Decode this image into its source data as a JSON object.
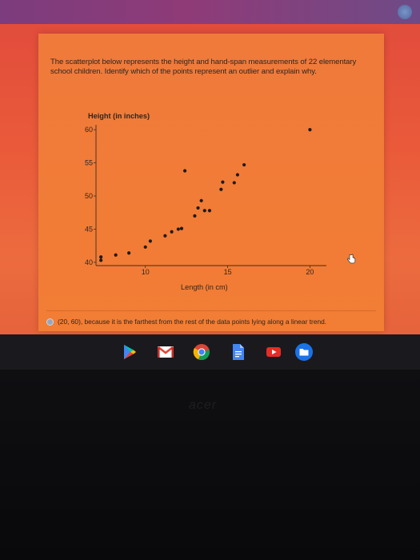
{
  "question": {
    "text": "The scatterplot below represents the height and hand-span measurements of 22 elementary school children. Identify which of the points represent an outlier and explain why."
  },
  "chart_data": {
    "type": "scatter",
    "ylabel": "Height (in inches)",
    "xlabel": "Length (in cm)",
    "xlim": [
      7,
      21
    ],
    "ylim": [
      39.5,
      60.5
    ],
    "x_ticks": [
      "10",
      "15",
      "20"
    ],
    "y_ticks": [
      "40",
      "45",
      "50",
      "55",
      "60"
    ],
    "x_tick_values": [
      10,
      15,
      20
    ],
    "y_tick_values": [
      40,
      45,
      50,
      55,
      60
    ],
    "points": [
      [
        7.3,
        40.3
      ],
      [
        7.3,
        40.8
      ],
      [
        8.2,
        41.1
      ],
      [
        9.0,
        41.4
      ],
      [
        10.0,
        42.3
      ],
      [
        10.3,
        43.2
      ],
      [
        11.2,
        44.0
      ],
      [
        11.6,
        44.6
      ],
      [
        12.0,
        45.0
      ],
      [
        12.2,
        45.1
      ],
      [
        12.4,
        53.8
      ],
      [
        13.0,
        47.0
      ],
      [
        13.2,
        48.2
      ],
      [
        13.4,
        49.3
      ],
      [
        13.6,
        47.8
      ],
      [
        13.9,
        47.8
      ],
      [
        14.6,
        51.0
      ],
      [
        14.7,
        52.1
      ],
      [
        15.4,
        52.0
      ],
      [
        15.6,
        53.2
      ],
      [
        16.0,
        54.7
      ],
      [
        20.0,
        60.0
      ]
    ]
  },
  "answer": {
    "text": "(20, 60), because it is the farthest from the rest of the data points lying along a linear trend."
  },
  "icons": {
    "pointer": "hand-pointer-icon",
    "shelf": [
      "play-store-icon",
      "gmail-icon",
      "chrome-icon",
      "docs-icon",
      "youtube-icon",
      "files-icon"
    ]
  },
  "brand": "acer"
}
